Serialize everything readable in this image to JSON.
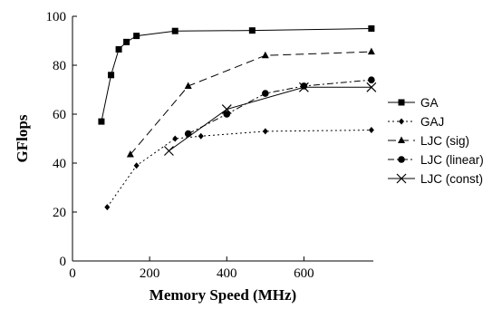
{
  "chart_data": {
    "type": "line",
    "title": "",
    "xlabel": "Memory Speed (MHz)",
    "ylabel": "GFlops",
    "xlim": [
      0,
      780
    ],
    "ylim": [
      0,
      100
    ],
    "x_ticks": [
      0,
      200,
      400,
      600
    ],
    "y_ticks": [
      0,
      20,
      40,
      60,
      80,
      100
    ],
    "x_tick_labels": [
      "0",
      "200",
      "400",
      "600"
    ],
    "y_tick_labels": [
      "0",
      "20",
      "40",
      "60",
      "80",
      "100"
    ],
    "grid": false,
    "legend_position": "right",
    "series": [
      {
        "name": "GA",
        "marker": "square",
        "line_style": "solid",
        "points": [
          [
            75,
            57
          ],
          [
            100,
            76
          ],
          [
            120,
            86.5
          ],
          [
            140,
            89.5
          ],
          [
            166,
            92
          ],
          [
            266,
            94
          ],
          [
            466,
            94.2
          ],
          [
            775,
            95
          ]
        ]
      },
      {
        "name": "GAJ",
        "marker": "diamond",
        "line_style": "dotted",
        "points": [
          [
            90,
            22
          ],
          [
            166,
            39
          ],
          [
            266,
            50
          ],
          [
            333,
            51
          ],
          [
            500,
            53
          ],
          [
            775,
            53.5
          ]
        ]
      },
      {
        "name": "LJC (sig)",
        "marker": "triangle",
        "line_style": "longdash",
        "points": [
          [
            150,
            43.5
          ],
          [
            300,
            71.5
          ],
          [
            500,
            84
          ],
          [
            775,
            85.5
          ]
        ]
      },
      {
        "name": "LJC (linear)",
        "marker": "circle",
        "line_style": "dashdot",
        "points": [
          [
            300,
            52
          ],
          [
            400,
            60
          ],
          [
            500,
            68.5
          ],
          [
            600,
            71.5
          ],
          [
            775,
            74
          ]
        ]
      },
      {
        "name": "LJC (const)",
        "marker": "x",
        "line_style": "solid",
        "points": [
          [
            250,
            45
          ],
          [
            400,
            62
          ],
          [
            600,
            71
          ],
          [
            775,
            71
          ]
        ]
      }
    ]
  }
}
